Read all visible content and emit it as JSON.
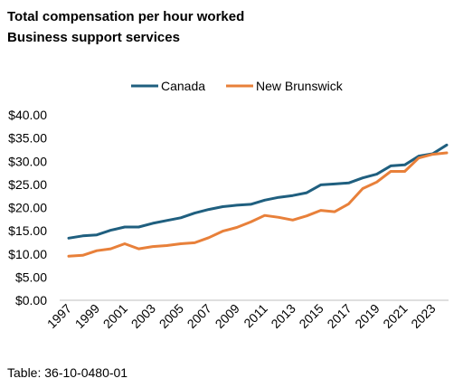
{
  "chart_data": {
    "type": "line",
    "title": "Total compensation per hour worked",
    "subtitle": "Business support services",
    "x": [
      1997,
      1998,
      1999,
      2000,
      2001,
      2002,
      2003,
      2004,
      2005,
      2006,
      2007,
      2008,
      2009,
      2010,
      2011,
      2012,
      2013,
      2014,
      2015,
      2016,
      2017,
      2018,
      2019,
      2020,
      2021,
      2022,
      2023,
      2024
    ],
    "x_tick_labels": [
      "1997",
      "1999",
      "2001",
      "2003",
      "2005",
      "2007",
      "2009",
      "2011",
      "2013",
      "2015",
      "2017",
      "2019",
      "2021",
      "2023"
    ],
    "y_tick_labels": [
      "$0.00",
      "$5.00",
      "$10.00",
      "$15.00",
      "$20.00",
      "$25.00",
      "$30.00",
      "$35.00",
      "$40.00"
    ],
    "ylim": [
      0,
      40
    ],
    "grid": false,
    "legend_position": "top-center",
    "series": [
      {
        "name": "Canada",
        "color": "#1f5f7f",
        "values": [
          13.4,
          13.9,
          14.1,
          15.1,
          15.8,
          15.8,
          16.6,
          17.2,
          17.8,
          18.8,
          19.6,
          20.2,
          20.5,
          20.7,
          21.6,
          22.2,
          22.6,
          23.2,
          24.9,
          25.1,
          25.3,
          26.4,
          27.2,
          29.0,
          29.2,
          31.1,
          31.6,
          33.5
        ]
      },
      {
        "name": "New Brunswick",
        "color": "#e8803a",
        "values": [
          9.5,
          9.7,
          10.7,
          11.1,
          12.2,
          11.1,
          11.6,
          11.8,
          12.2,
          12.4,
          13.5,
          14.9,
          15.7,
          16.9,
          18.3,
          17.9,
          17.3,
          18.2,
          19.4,
          19.1,
          20.8,
          24.1,
          25.5,
          27.8,
          27.8,
          30.7,
          31.5,
          31.8
        ]
      }
    ],
    "source": "Table: 36-10-0480-01"
  }
}
